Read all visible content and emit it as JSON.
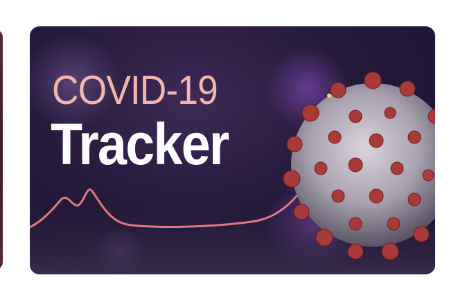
{
  "banner": {
    "title_line1": "COVID-19",
    "title_line2": "Tracker"
  },
  "colors": {
    "background": "#231838",
    "title_accent": "#f2b6ad",
    "title_main": "#ffffff",
    "curve": "#e07880",
    "virus_spike": "#a83a3a"
  },
  "icons": {
    "virus": "coronavirus-illustration",
    "curve": "case-curve-graphic"
  }
}
